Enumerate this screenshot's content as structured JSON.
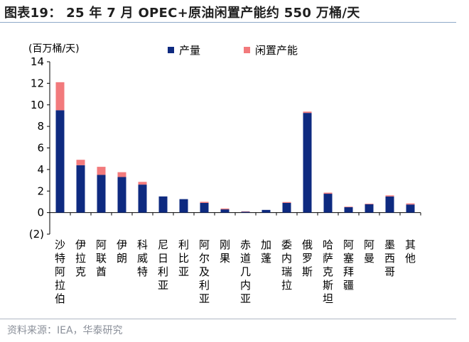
{
  "header": {
    "title": "图表19： 25 年 7 月 OPEC+原油闲置产能约 550 万桶/天"
  },
  "footer": {
    "source": "资料来源：IEA，华泰研究"
  },
  "colors": {
    "production": "#0e2a80",
    "spare": "#f27a7c",
    "axis": "#000000",
    "rule": "#8ea9c8"
  },
  "chart_data": {
    "type": "bar",
    "stacked": true,
    "title": "",
    "ylabel": "(百万桶/天)",
    "xlabel": "",
    "ylim": [
      -2,
      14
    ],
    "yticks": [
      -2,
      0,
      2,
      4,
      6,
      8,
      10,
      12,
      14
    ],
    "ytick_labels": [
      "(2)",
      "0",
      "2",
      "4",
      "6",
      "8",
      "10",
      "12",
      "14"
    ],
    "grid": false,
    "legend_position": "top",
    "categories": [
      "沙特阿拉伯",
      "伊拉克",
      "阿联酋",
      "伊朗",
      "科威特",
      "尼日利亚",
      "利比亚",
      "阿尔及利亚",
      "刚果",
      "赤道几内亚",
      "加蓬",
      "委内瑞拉",
      "俄罗斯",
      "哈萨克斯坦",
      "阿塞拜疆",
      "阿曼",
      "墨西哥",
      "其他"
    ],
    "series": [
      {
        "name": "产量",
        "color_key": "production",
        "values": [
          9.5,
          4.4,
          3.5,
          3.3,
          2.6,
          1.5,
          1.25,
          0.9,
          0.3,
          0.08,
          0.25,
          0.9,
          9.25,
          1.75,
          0.5,
          0.78,
          1.5,
          0.75
        ]
      },
      {
        "name": "闲置产能",
        "color_key": "spare",
        "values": [
          2.6,
          0.5,
          0.75,
          0.45,
          0.25,
          0.0,
          0.0,
          0.1,
          0.08,
          0.04,
          0.0,
          0.08,
          0.12,
          0.1,
          0.05,
          0.05,
          0.1,
          0.1
        ]
      }
    ]
  }
}
